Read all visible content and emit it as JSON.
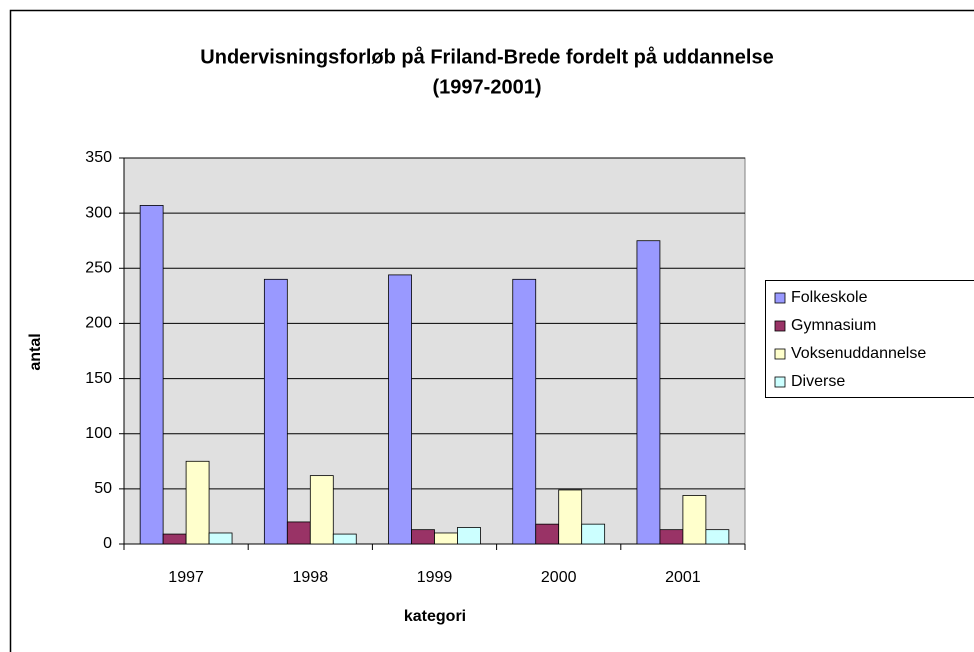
{
  "chart_data": {
    "type": "bar",
    "title": [
      "Undervisningsforløb på Friland-Brede fordelt på uddannelse",
      "(1997-2001)"
    ],
    "xlabel": "kategori",
    "ylabel": "antal",
    "categories": [
      "1997",
      "1998",
      "1999",
      "2000",
      "2001"
    ],
    "series": [
      {
        "name": "Folkeskole",
        "color": "#9999ff",
        "values": [
          307,
          240,
          244,
          240,
          275
        ]
      },
      {
        "name": "Gymnasium",
        "color": "#993366",
        "values": [
          9,
          20,
          13,
          18,
          13
        ]
      },
      {
        "name": "Voksenuddannelse",
        "color": "#ffffcc",
        "values": [
          75,
          62,
          10,
          49,
          44
        ]
      },
      {
        "name": "Diverse",
        "color": "#ccffff",
        "values": [
          10,
          9,
          15,
          18,
          13
        ]
      }
    ],
    "ylim": [
      0,
      350
    ],
    "yticks": [
      0,
      50,
      100,
      150,
      200,
      250,
      300,
      350
    ],
    "grid": true,
    "legend": "right"
  }
}
